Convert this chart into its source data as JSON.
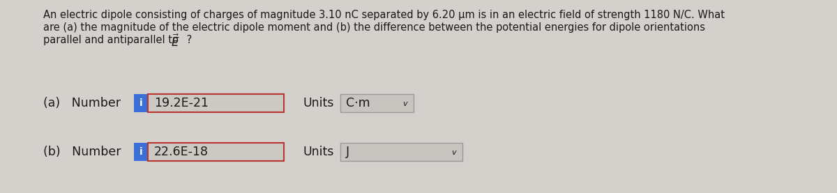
{
  "bg_color": "#d4d0cc",
  "text_color": "#1a1a1a",
  "question_line1": "An electric dipole consisting of charges of magnitude 3.10 nC separated by 6.20 μm is in an electric field of strength 1180 N/C. What",
  "question_line2": "are (a) the magnitude of the electric dipole moment and (b) the difference between the potential energies for dipole orientations",
  "question_line3": "parallel and antiparallel to",
  "part_a_label": "(a)   Number",
  "part_a_value": "19.2E-21",
  "part_a_units_label": "Units",
  "part_a_units_value": "C·m",
  "part_b_label": "(b)   Number",
  "part_b_value": "22.6E-18",
  "part_b_units_label": "Units",
  "part_b_units_value": "J",
  "input_box_fill": "#ccc8c2",
  "input_box_border": "#bb3333",
  "units_box_fill": "#c8c4c0",
  "units_box_border": "#999999",
  "info_btn_color": "#3a6fd8",
  "white": "#ffffff",
  "font_size_q": 10.5,
  "font_size_ui": 12.5
}
